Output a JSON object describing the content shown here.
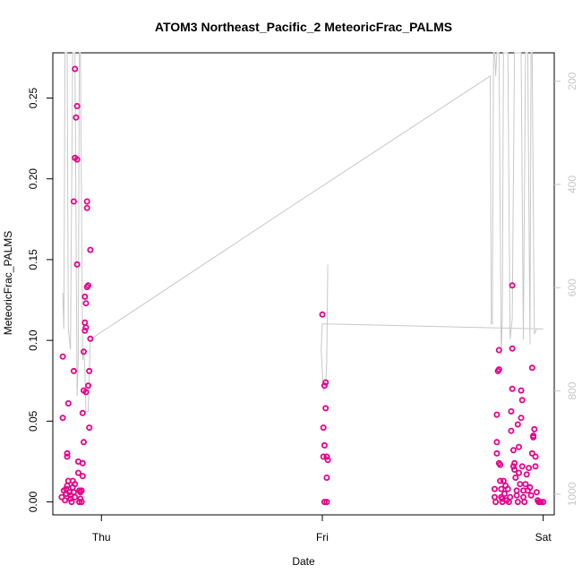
{
  "chart_data": {
    "type": "scatter",
    "title": "ATOM3 Northeast_Pacific_2 MeteoricFrac_PALMS",
    "xlabel": "Date",
    "ylabel": "MeteoricFrac_PALMS",
    "x_ticks": [
      {
        "label": "Thu",
        "value": 0
      },
      {
        "label": "Fri",
        "value": 1
      },
      {
        "label": "Sat",
        "value": 2
      }
    ],
    "xlim": [
      -0.22,
      2.05
    ],
    "ylim": [
      -0.008,
      0.278
    ],
    "y_ticks": [
      0.0,
      0.05,
      0.1,
      0.15,
      0.2,
      0.25
    ],
    "y_tick_labels": [
      "0.00",
      "0.05",
      "0.10",
      "0.15",
      "0.20",
      "0.25"
    ],
    "right_axis": {
      "ticks": [
        200,
        400,
        600,
        800,
        1000
      ],
      "tick_labels": [
        "200",
        "400",
        "600",
        "800",
        "1000"
      ],
      "lim": [
        1040,
        145
      ],
      "color": "#c8c8c8"
    },
    "series": [
      {
        "marker": "circle",
        "color": "#e6008a",
        "points": [
          [
            -0.175,
            0.09
          ],
          [
            -0.175,
            0.052
          ],
          [
            -0.18,
            0.003
          ],
          [
            -0.17,
            0.007
          ],
          [
            -0.16,
            0.005
          ],
          [
            -0.165,
            0.001
          ],
          [
            -0.16,
            0.008
          ],
          [
            -0.155,
            0.01
          ],
          [
            -0.15,
            0.013
          ],
          [
            -0.15,
            0.061
          ],
          [
            -0.155,
            0.03
          ],
          [
            -0.155,
            0.028
          ],
          [
            -0.145,
            0.006
          ],
          [
            -0.14,
            0.004
          ],
          [
            -0.14,
            0.002
          ],
          [
            -0.135,
            0.0
          ],
          [
            -0.13,
            0.009
          ],
          [
            -0.13,
            0.013
          ],
          [
            -0.125,
            0.006
          ],
          [
            -0.12,
            0.003
          ],
          [
            -0.12,
            0.011
          ],
          [
            -0.125,
            0.081
          ],
          [
            -0.125,
            0.186
          ],
          [
            -0.12,
            0.213
          ],
          [
            -0.12,
            0.268
          ],
          [
            -0.115,
            0.238
          ],
          [
            -0.11,
            0.245
          ],
          [
            -0.11,
            0.212
          ],
          [
            -0.11,
            0.147
          ],
          [
            -0.105,
            0.025
          ],
          [
            -0.105,
            0.018
          ],
          [
            -0.1,
            0.007
          ],
          [
            -0.1,
            0.0
          ],
          [
            -0.095,
            0.006
          ],
          [
            -0.095,
            0.002
          ],
          [
            -0.09,
            0.007
          ],
          [
            -0.09,
            0.0
          ],
          [
            -0.085,
            0.016
          ],
          [
            -0.085,
            0.024
          ],
          [
            -0.085,
            0.055
          ],
          [
            -0.08,
            0.037
          ],
          [
            -0.08,
            0.069
          ],
          [
            -0.08,
            0.093
          ],
          [
            -0.075,
            0.106
          ],
          [
            -0.075,
            0.111
          ],
          [
            -0.075,
            0.127
          ],
          [
            -0.07,
            0.123
          ],
          [
            -0.07,
            0.068
          ],
          [
            -0.07,
            0.108
          ],
          [
            -0.065,
            0.133
          ],
          [
            -0.06,
            0.134
          ],
          [
            -0.065,
            0.186
          ],
          [
            -0.065,
            0.182
          ],
          [
            -0.06,
            0.072
          ],
          [
            -0.055,
            0.081
          ],
          [
            -0.055,
            0.046
          ],
          [
            -0.05,
            0.156
          ],
          [
            -0.05,
            0.101
          ],
          [
            1.0,
            0.116
          ],
          [
            1.01,
            0.072
          ],
          [
            1.015,
            0.074
          ],
          [
            1.005,
            0.046
          ],
          [
            1.015,
            0.058
          ],
          [
            1.01,
            0.035
          ],
          [
            1.005,
            0.028
          ],
          [
            1.02,
            0.028
          ],
          [
            1.025,
            0.026
          ],
          [
            1.02,
            0.015
          ],
          [
            1.01,
            0.0
          ],
          [
            1.02,
            0.0
          ],
          [
            1.78,
            0.008
          ],
          [
            1.78,
            0.003
          ],
          [
            1.785,
            0.0
          ],
          [
            1.79,
            0.03
          ],
          [
            1.79,
            0.037
          ],
          [
            1.79,
            0.054
          ],
          [
            1.795,
            0.081
          ],
          [
            1.8,
            0.094
          ],
          [
            1.8,
            0.082
          ],
          [
            1.8,
            0.024
          ],
          [
            1.805,
            0.023
          ],
          [
            1.805,
            0.013
          ],
          [
            1.81,
            0.008
          ],
          [
            1.81,
            0.003
          ],
          [
            1.815,
            0.002
          ],
          [
            1.815,
            0.0
          ],
          [
            1.82,
            0.013
          ],
          [
            1.825,
            0.005
          ],
          [
            1.83,
            0.01
          ],
          [
            1.835,
            0.001
          ],
          [
            1.84,
            0.008
          ],
          [
            1.845,
            0.0
          ],
          [
            1.85,
            0.003
          ],
          [
            1.855,
            0.044
          ],
          [
            1.855,
            0.056
          ],
          [
            1.86,
            0.07
          ],
          [
            1.86,
            0.095
          ],
          [
            1.86,
            0.134
          ],
          [
            1.865,
            0.032
          ],
          [
            1.865,
            0.022
          ],
          [
            1.87,
            0.02
          ],
          [
            1.87,
            0.024
          ],
          [
            1.875,
            0.015
          ],
          [
            1.88,
            0.007
          ],
          [
            1.88,
            0.004
          ],
          [
            1.885,
            0.0
          ],
          [
            1.885,
            0.048
          ],
          [
            1.89,
            0.034
          ],
          [
            1.89,
            0.018
          ],
          [
            1.895,
            0.011
          ],
          [
            1.9,
            0.052
          ],
          [
            1.9,
            0.069
          ],
          [
            1.905,
            0.063
          ],
          [
            1.905,
            0.022
          ],
          [
            1.91,
            0.007
          ],
          [
            1.91,
            0.003
          ],
          [
            1.915,
            0.0
          ],
          [
            1.92,
            0.011
          ],
          [
            1.925,
            0.017
          ],
          [
            1.93,
            0.007
          ],
          [
            1.935,
            0.021
          ],
          [
            1.94,
            0.009
          ],
          [
            1.945,
            0.004
          ],
          [
            1.95,
            0.03
          ],
          [
            1.95,
            0.083
          ],
          [
            1.955,
            0.04
          ],
          [
            1.955,
            0.041
          ],
          [
            1.96,
            0.045
          ],
          [
            1.965,
            0.028
          ],
          [
            1.965,
            0.022
          ],
          [
            1.97,
            0.006
          ],
          [
            1.975,
            0.001
          ],
          [
            1.98,
            0.0
          ],
          [
            1.985,
            0.0
          ],
          [
            1.99,
            0.0
          ],
          [
            2.0,
            0.0
          ]
        ]
      },
      {
        "marker": "line",
        "color": "#c8c8c8",
        "axis": "right",
        "points": [
          [
            -0.175,
            610
          ],
          [
            -0.17,
            680
          ],
          [
            -0.165,
            145
          ],
          [
            -0.155,
            145
          ],
          [
            -0.15,
            680
          ],
          [
            -0.14,
            720
          ],
          [
            -0.13,
            145
          ],
          [
            -0.12,
            145
          ],
          [
            -0.11,
            810
          ],
          [
            -0.105,
            740
          ],
          [
            -0.1,
            145
          ],
          [
            -0.095,
            145
          ],
          [
            -0.085,
            740
          ],
          [
            -0.08,
            720
          ],
          [
            -0.075,
            760
          ],
          [
            -0.07,
            840
          ],
          [
            -0.06,
            840
          ],
          [
            -0.05,
            700
          ],
          [
            0.85,
            445
          ],
          [
            1.76,
            190
          ],
          [
            1.765,
            670
          ],
          [
            1.77,
            670
          ],
          [
            1.775,
            145
          ],
          [
            1.78,
            145
          ],
          [
            1.785,
            190
          ],
          [
            1.79,
            145
          ],
          [
            1.8,
            145
          ],
          [
            1.81,
            730
          ],
          [
            1.815,
            660
          ],
          [
            1.82,
            145
          ],
          [
            1.84,
            145
          ],
          [
            1.85,
            700
          ],
          [
            1.86,
            660
          ],
          [
            1.87,
            145
          ],
          [
            1.9,
            145
          ],
          [
            1.91,
            700
          ],
          [
            1.92,
            145
          ],
          [
            1.93,
            145
          ],
          [
            1.94,
            710
          ],
          [
            1.945,
            145
          ],
          [
            1.95,
            145
          ],
          [
            1.96,
            690
          ],
          [
            1.97,
            680
          ],
          [
            2.0,
            680
          ],
          [
            1.02,
            670
          ],
          [
            1.0,
            670
          ],
          [
            0.995,
            720
          ],
          [
            1.005,
            800
          ],
          [
            1.015,
            790
          ],
          [
            1.02,
            745
          ],
          [
            1.025,
            555
          ]
        ]
      }
    ]
  }
}
